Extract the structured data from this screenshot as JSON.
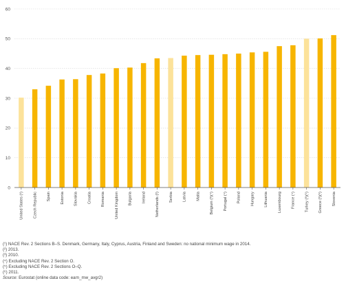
{
  "chart_data": {
    "type": "bar",
    "title": "",
    "xlabel": "",
    "ylabel": "",
    "ylim": [
      0,
      60
    ],
    "yticks": [
      0,
      10,
      20,
      30,
      40,
      50,
      60
    ],
    "grid": true,
    "legend": "none",
    "categories": [
      "United States (¹)",
      "Czech Republic",
      "Spain",
      "Estonia",
      "Slovakia",
      "Croatia",
      "Romania",
      "United Kingdom",
      "Bulgaria",
      "Ireland",
      "Netherlands (²)",
      "Serbia",
      "Latvia",
      "Malta",
      "Belgium (³)(⁴)",
      "Portugal (⁴)",
      "Poland",
      "Hungary",
      "Lithuania",
      "Luxembourg",
      "France (⁴)",
      "Turkey (³)(⁵)",
      "Greece (³)(⁶)",
      "Slovenia"
    ],
    "values": [
      30.2,
      33.0,
      34.2,
      36.3,
      36.4,
      37.8,
      38.3,
      40.1,
      40.3,
      41.8,
      43.4,
      43.5,
      44.3,
      44.5,
      44.6,
      44.8,
      45.0,
      45.4,
      45.6,
      47.5,
      47.8,
      50.0,
      50.1,
      51.2
    ],
    "highlight_categories": [
      "United States (¹)",
      "Serbia",
      "Turkey (³)(⁵)"
    ],
    "colors": {
      "bar": "#f7b500",
      "bar_highlight": "#fce29a",
      "grid": "#d6d6d6",
      "axis": "#555555"
    }
  },
  "footnotes": [
    "(¹) NACE Rev. 2 Sections B–S. Denmark, Germany, Italy, Cyprus, Austria, Finland and Sweden: no national minimum wage in 2014.",
    "(²) 2013.",
    "(³) 2010.",
    "(⁴) Excluding NACE Rev. 2 Section O.",
    "(⁵) Excluding NACE Rev. 2 Sections O–Q.",
    "(⁶) 2011."
  ],
  "source": {
    "label": "Source:",
    "text": "Eurostat (online data code: earn_mw_avgr2)"
  }
}
